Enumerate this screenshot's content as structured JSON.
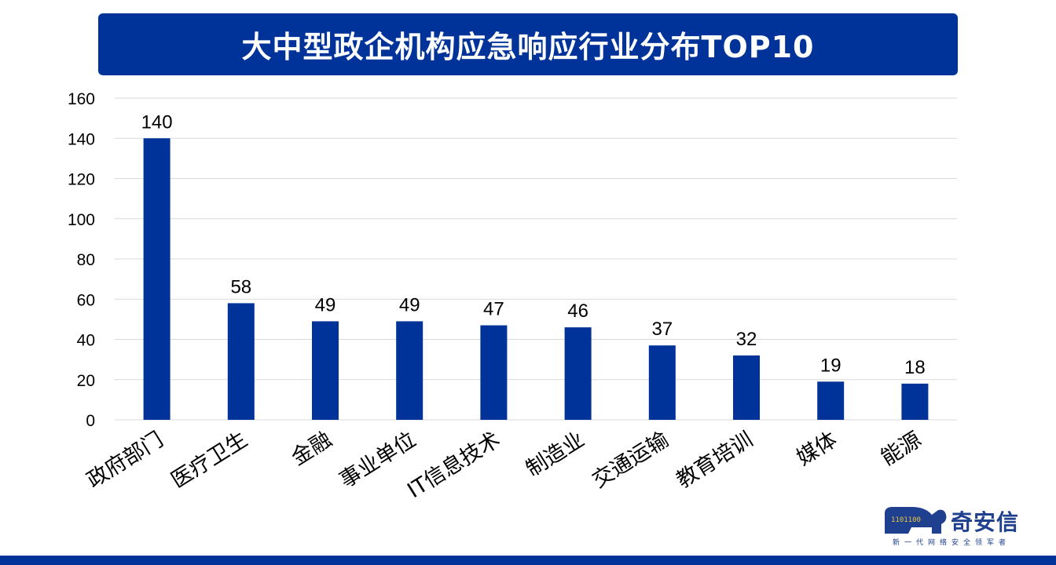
{
  "title": "大中型政企机构应急响应行业分布TOP10",
  "chart_data": {
    "type": "bar",
    "title": "大中型政企机构应急响应行业分布TOP10",
    "categories": [
      "政府部门",
      "医疗卫生",
      "金融",
      "事业单位",
      "IT信息技术",
      "制造业",
      "交通运输",
      "教育培训",
      "媒体",
      "能源"
    ],
    "values": [
      140,
      58,
      49,
      49,
      47,
      46,
      37,
      32,
      19,
      18
    ],
    "ylim": [
      0,
      160
    ],
    "yticks": [
      0,
      20,
      40,
      60,
      80,
      100,
      120,
      140,
      160
    ],
    "xlabel": "",
    "ylabel": "",
    "grid": true,
    "data_labels": true,
    "bar_color": "#003399"
  },
  "logo": {
    "name": "奇安信",
    "slogan": "新一代网络安全领军者",
    "digits": "1101100",
    "color": "#1f3f8f"
  },
  "theme": {
    "banner_color": "#003399",
    "grid_color": "#d9d9d9"
  }
}
